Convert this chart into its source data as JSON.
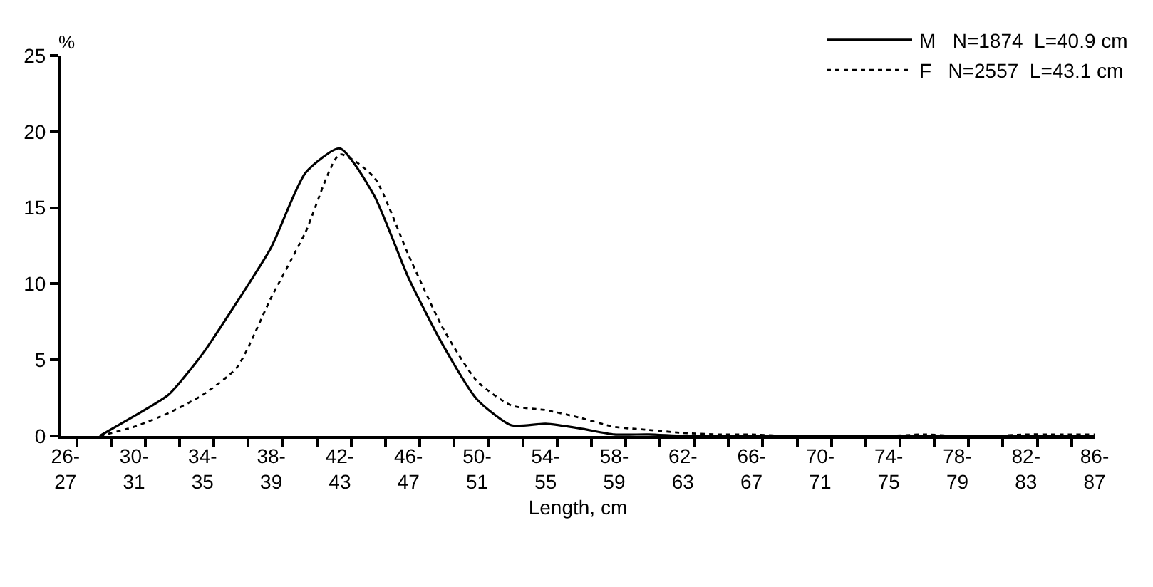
{
  "chart_data": {
    "type": "line",
    "xlabel": "Length, cm",
    "ylabel": "%",
    "categories": [
      "26-27",
      null,
      "30-31",
      null,
      "34-35",
      null,
      "38-39",
      null,
      "42-43",
      null,
      "46-47",
      null,
      "50-51",
      null,
      "54-55",
      null,
      "58-59",
      null,
      "62-63",
      null,
      "66-67",
      null,
      "70-71",
      null,
      "74-75",
      null,
      "78-79",
      null,
      "82-83",
      null,
      "86-87"
    ],
    "series": [
      {
        "name": "M   N=1874  L=40.9 cm",
        "color": "#000000",
        "line_style": "solid",
        "values": [
          null,
          0,
          1.3,
          2.7,
          5.4,
          8.8,
          12.4,
          17.3,
          18.9,
          15.8,
          10.4,
          6.0,
          2.4,
          0.7,
          0.8,
          0.5,
          0.1,
          0.1,
          0,
          0,
          0,
          0,
          0,
          0,
          0,
          0,
          0,
          0,
          0,
          0,
          0
        ]
      },
      {
        "name": "F   N=2557  L=43.1 cm",
        "color": "#000000",
        "line_style": "dotted",
        "values": [
          null,
          0,
          0.6,
          1.5,
          2.7,
          4.5,
          9.1,
          13.4,
          18.5,
          17.0,
          11.9,
          7.1,
          3.6,
          2.0,
          1.7,
          1.2,
          0.6,
          0.4,
          0.2,
          0.1,
          0.1,
          0,
          0,
          0,
          0,
          0.1,
          0,
          0,
          0.1,
          0.1,
          0.1
        ]
      }
    ],
    "ylim": [
      0,
      25
    ],
    "yticks": [
      0,
      5,
      10,
      15,
      20,
      25
    ],
    "legend": "top right",
    "marker": "none"
  }
}
